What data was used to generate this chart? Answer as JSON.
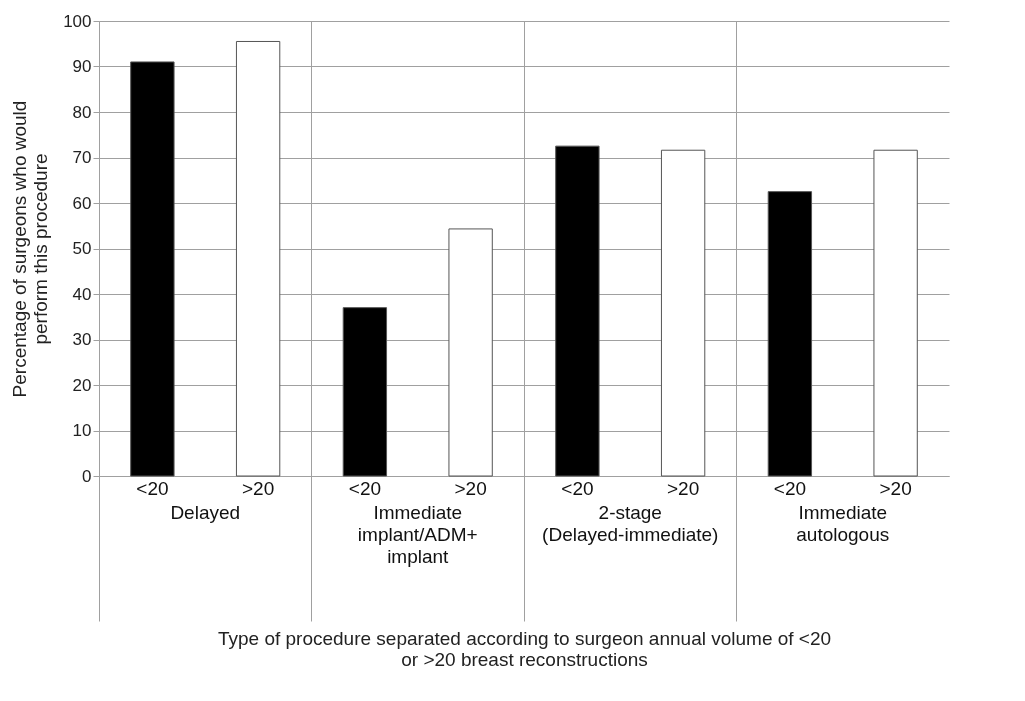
{
  "chart_data": {
    "type": "bar",
    "xlabel": "Type of procedure separated according to surgeon annual volume of <20 or >20 breast reconstructions",
    "ylabel": "Percentage of surgeons who would perform this procedure",
    "categories": [
      "Delayed",
      "Immediate implant/ADM+ implant",
      "2-stage (Delayed-immediate)",
      "Immediate autologous"
    ],
    "series": [
      {
        "name": "<20",
        "color": "#000000",
        "values": [
          91,
          37,
          72.5,
          62.5
        ]
      },
      {
        "name": ">20",
        "color": "#ffffff",
        "values": [
          95.5,
          54.3,
          71.6,
          71.6
        ]
      }
    ],
    "ylim": [
      0,
      100
    ],
    "yticks": [
      0,
      10,
      20,
      30,
      40,
      50,
      60,
      70,
      80,
      90,
      100
    ],
    "grid": true,
    "legend": false
  }
}
